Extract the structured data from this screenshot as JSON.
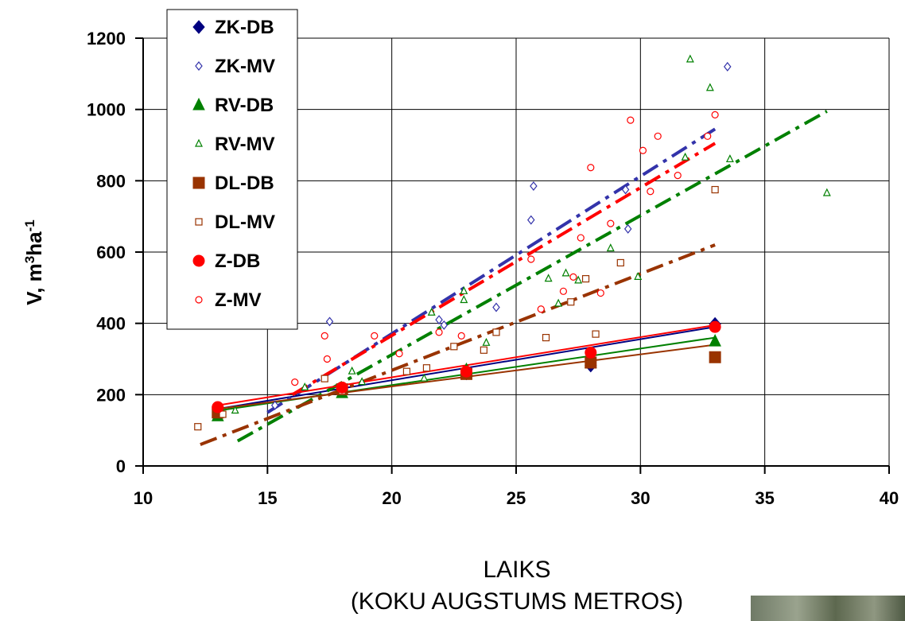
{
  "chart_data": {
    "type": "scatter",
    "title": "",
    "xlabel_line1": "LAIKS",
    "xlabel_line2": "(KOKU AUGSTUMS METROS)",
    "ylabel_main": "V, m",
    "ylabel_sup1": "3",
    "ylabel_mid": "ha",
    "ylabel_sup2": "-1",
    "xlim": [
      10,
      40
    ],
    "ylim": [
      0,
      1200
    ],
    "xticks": [
      10,
      15,
      20,
      25,
      30,
      35,
      40
    ],
    "yticks": [
      0,
      200,
      400,
      600,
      800,
      1000,
      1200
    ],
    "grid": true,
    "legend_position": "top-left",
    "series": [
      {
        "name": "ZK-DB",
        "color": "#000080",
        "marker": "diamond-filled",
        "points": [
          [
            13,
            160
          ],
          [
            18,
            215
          ],
          [
            23,
            260
          ],
          [
            28,
            282
          ],
          [
            33,
            398
          ]
        ],
        "trend": {
          "from": [
            13,
            160
          ],
          "to": [
            33,
            390
          ],
          "style": "solid"
        }
      },
      {
        "name": "ZK-MV",
        "color": "#3333aa",
        "marker": "diamond-open",
        "points": [
          [
            15.3,
            170
          ],
          [
            17.5,
            405
          ],
          [
            21.9,
            410
          ],
          [
            22.1,
            395
          ],
          [
            24.2,
            445
          ],
          [
            25.6,
            690
          ],
          [
            25.7,
            785
          ],
          [
            29.4,
            775
          ],
          [
            29.5,
            665
          ],
          [
            33.5,
            1120
          ]
        ],
        "trend": {
          "from": [
            15,
            150
          ],
          "to": [
            33,
            945
          ],
          "style": "dashdot"
        }
      },
      {
        "name": "RV-DB",
        "color": "#008000",
        "marker": "triangle-filled",
        "points": [
          [
            13,
            140
          ],
          [
            18,
            205
          ],
          [
            23,
            270
          ],
          [
            28,
            290
          ],
          [
            33,
            350
          ]
        ],
        "trend": {
          "from": [
            13,
            155
          ],
          "to": [
            33,
            360
          ],
          "style": "solid"
        }
      },
      {
        "name": "RV-MV",
        "color": "#008000",
        "marker": "triangle-open",
        "points": [
          [
            13.7,
            155
          ],
          [
            16.5,
            220
          ],
          [
            18.4,
            265
          ],
          [
            18.8,
            235
          ],
          [
            21.3,
            245
          ],
          [
            21.6,
            430
          ],
          [
            22.9,
            490
          ],
          [
            22.9,
            465
          ],
          [
            23.8,
            345
          ],
          [
            26.3,
            525
          ],
          [
            26.7,
            455
          ],
          [
            27.0,
            540
          ],
          [
            27.5,
            520
          ],
          [
            28.8,
            610
          ],
          [
            29.9,
            530
          ],
          [
            31.8,
            865
          ],
          [
            32.0,
            1140
          ],
          [
            32.8,
            1060
          ],
          [
            33.6,
            860
          ],
          [
            37.5,
            765
          ]
        ],
        "trend": {
          "from": [
            13.8,
            70
          ],
          "to": [
            37.5,
            995
          ],
          "style": "dashdot"
        }
      },
      {
        "name": "DL-DB",
        "color": "#993300",
        "marker": "square-filled",
        "points": [
          [
            13,
            150
          ],
          [
            18,
            215
          ],
          [
            23,
            258
          ],
          [
            28,
            290
          ],
          [
            33,
            305
          ]
        ],
        "trend": {
          "from": [
            13,
            160
          ],
          "to": [
            33,
            340
          ],
          "style": "solid"
        }
      },
      {
        "name": "DL-MV",
        "color": "#993300",
        "marker": "square-open",
        "points": [
          [
            12.2,
            110
          ],
          [
            13.2,
            145
          ],
          [
            17.3,
            245
          ],
          [
            18.0,
            210
          ],
          [
            20.6,
            265
          ],
          [
            21.4,
            275
          ],
          [
            22.5,
            335
          ],
          [
            23.7,
            325
          ],
          [
            24.2,
            375
          ],
          [
            26.2,
            360
          ],
          [
            27.2,
            460
          ],
          [
            27.8,
            525
          ],
          [
            28.2,
            370
          ],
          [
            29.2,
            570
          ],
          [
            33.0,
            775
          ]
        ],
        "trend": {
          "from": [
            12.3,
            60
          ],
          "to": [
            33,
            620
          ],
          "style": "dashdot"
        }
      },
      {
        "name": "Z-DB",
        "color": "#ff0000",
        "marker": "circle-filled",
        "points": [
          [
            13,
            165
          ],
          [
            18,
            220
          ],
          [
            23,
            265
          ],
          [
            28,
            318
          ],
          [
            33,
            390
          ]
        ],
        "trend": {
          "from": [
            13,
            170
          ],
          "to": [
            33,
            395
          ],
          "style": "solid"
        }
      },
      {
        "name": "Z-MV",
        "color": "#ff0000",
        "marker": "circle-open",
        "points": [
          [
            16.1,
            235
          ],
          [
            17.3,
            365
          ],
          [
            17.4,
            300
          ],
          [
            19.3,
            365
          ],
          [
            20.3,
            315
          ],
          [
            21.9,
            375
          ],
          [
            22.8,
            365
          ],
          [
            25.6,
            580
          ],
          [
            26.0,
            440
          ],
          [
            26.9,
            490
          ],
          [
            27.3,
            530
          ],
          [
            27.6,
            640
          ],
          [
            28.4,
            485
          ],
          [
            28.8,
            680
          ],
          [
            28.0,
            837
          ],
          [
            29.6,
            970
          ],
          [
            30.1,
            885
          ],
          [
            30.4,
            770
          ],
          [
            30.7,
            925
          ],
          [
            31.5,
            815
          ],
          [
            32.7,
            925
          ],
          [
            33.0,
            985
          ]
        ],
        "trend": {
          "from": [
            16,
            200
          ],
          "to": [
            33,
            905
          ],
          "style": "dashdot"
        }
      }
    ]
  }
}
